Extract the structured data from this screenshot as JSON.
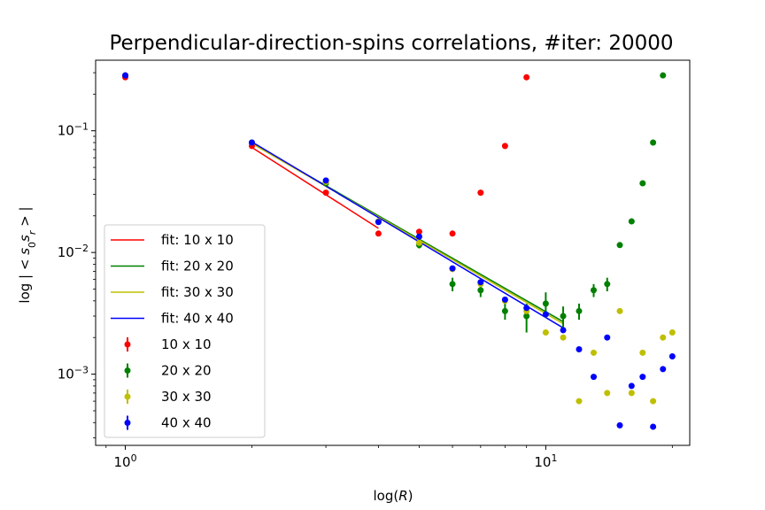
{
  "chart_data": {
    "type": "scatter",
    "title": "Perpendicular-direction-spins correlations, #iter: 20000",
    "xlabel": "log(R)",
    "ylabel": "log | < s0 sr > |",
    "xscale": "log",
    "yscale": "log",
    "xlim": [
      0.85,
      22.0
    ],
    "ylim": [
      0.00026,
      0.38
    ],
    "x_ticks": [
      {
        "value": 1,
        "base": "10",
        "exp": "0"
      },
      {
        "value": 10,
        "base": "10",
        "exp": "1"
      }
    ],
    "y_ticks": [
      {
        "value": 0.001,
        "base": "10",
        "exp": "−3"
      },
      {
        "value": 0.01,
        "base": "10",
        "exp": "−2"
      },
      {
        "value": 0.1,
        "base": "10",
        "exp": "−1"
      }
    ],
    "grid": false,
    "legend_position": "lower-left",
    "series": [
      {
        "name": "10 x 10",
        "fit_name": "fit: 10 x 10",
        "color": "#ff0000",
        "x": [
          1,
          2,
          3,
          4,
          5,
          6,
          7,
          8,
          9
        ],
        "y": [
          0.275,
          0.075,
          0.031,
          0.0143,
          0.0148,
          0.0143,
          0.031,
          0.075,
          0.275
        ],
        "err": [
          0,
          0,
          0,
          0,
          0,
          0,
          0,
          0,
          0
        ],
        "fit": {
          "x": [
            2,
            4
          ],
          "y": [
            0.073,
            0.0158
          ]
        }
      },
      {
        "name": "20 x 20",
        "fit_name": "fit: 20 x 20",
        "color": "#008000",
        "x": [
          1,
          2,
          3,
          4,
          5,
          6,
          7,
          8,
          9,
          10,
          11,
          12,
          13,
          14,
          15,
          16,
          17,
          18,
          19
        ],
        "y": [
          0.285,
          0.08,
          0.037,
          0.018,
          0.0115,
          0.0055,
          0.0049,
          0.0033,
          0.003,
          0.0038,
          0.003,
          0.0033,
          0.0049,
          0.0055,
          0.0115,
          0.018,
          0.037,
          0.08,
          0.285
        ],
        "err": [
          0,
          0,
          0,
          0,
          0.0007,
          0.0007,
          0.0006,
          0.0005,
          0.0008,
          0.0009,
          0.0006,
          0.0005,
          0.0006,
          0.0007,
          0,
          0,
          0,
          0,
          0
        ],
        "fit": {
          "x": [
            2,
            11
          ],
          "y": [
            0.079,
            0.0027
          ]
        }
      },
      {
        "name": "30 x 30",
        "fit_name": "fit: 30 x 30",
        "color": "#bfbf00",
        "x": [
          1,
          2,
          3,
          4,
          5,
          6,
          7,
          8,
          9,
          10,
          11,
          12,
          13,
          14,
          15,
          16,
          17,
          18,
          19,
          20
        ],
        "y": [
          0.285,
          0.08,
          0.038,
          0.018,
          0.012,
          0.0073,
          0.0055,
          0.004,
          0.0033,
          0.0022,
          0.002,
          0.0006,
          0.0015,
          0.0007,
          0.0033,
          0.0007,
          0.0015,
          0.0006,
          0.002,
          0.0022
        ],
        "err": [
          0,
          0,
          0,
          0,
          0,
          0,
          0,
          0,
          0,
          0,
          0,
          0,
          0,
          0,
          0,
          0,
          0,
          0,
          0,
          0
        ],
        "fit": {
          "x": [
            2,
            11
          ],
          "y": [
            0.0785,
            0.0026
          ]
        }
      },
      {
        "name": "40 x 40",
        "fit_name": "fit: 40 x 40",
        "color": "#0000ff",
        "x": [
          1,
          2,
          3,
          4,
          5,
          6,
          7,
          8,
          9,
          10,
          11,
          12,
          13,
          14,
          15,
          16,
          17,
          18,
          19,
          20
        ],
        "y": [
          0.285,
          0.08,
          0.039,
          0.0178,
          0.0135,
          0.0074,
          0.0057,
          0.0041,
          0.0035,
          0.0031,
          0.0023,
          0.0016,
          0.00095,
          0.002,
          0.00038,
          0.0008,
          0.00095,
          0.00037,
          0.0011,
          0.0014
        ],
        "err": [
          0,
          0,
          0,
          0,
          0,
          0,
          0,
          0,
          0,
          0,
          0,
          0,
          0,
          0,
          0,
          0,
          0,
          0,
          0,
          0
        ],
        "fit": {
          "x": [
            2,
            11
          ],
          "y": [
            0.081,
            0.0024
          ]
        }
      }
    ]
  }
}
